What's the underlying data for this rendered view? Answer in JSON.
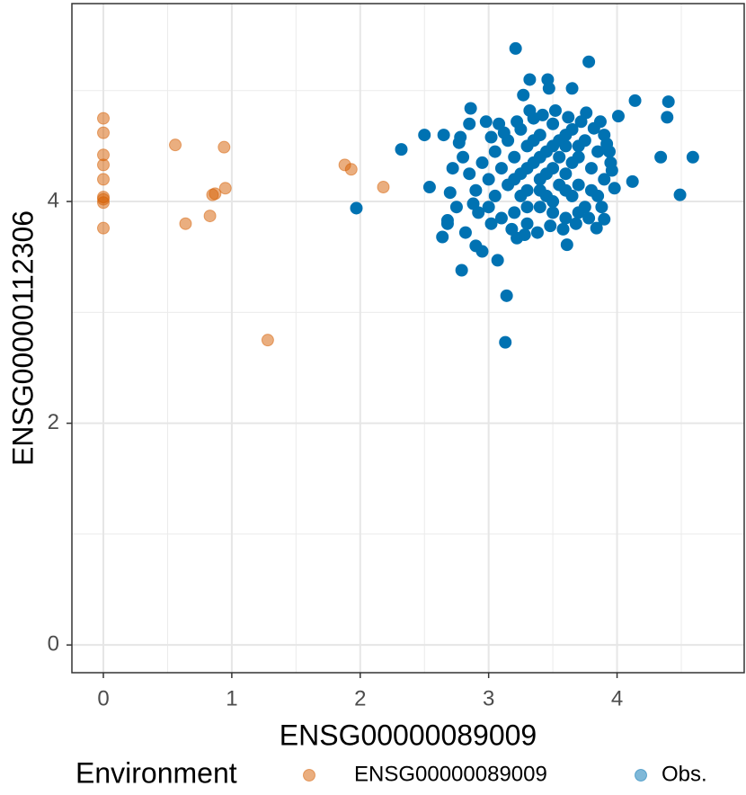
{
  "chart_data": {
    "type": "scatter",
    "x_label": "ENSG00000089009",
    "y_label": "ENSG00000112306",
    "legend_title": "Environment",
    "legend_position": "bottom",
    "grid": true,
    "xlim": [
      -0.245,
      4.99
    ],
    "ylim": [
      -0.25,
      5.785
    ],
    "xticks": [
      0,
      1,
      2,
      3,
      4
    ],
    "yticks": [
      0,
      2,
      4
    ],
    "x_minor_grid": [
      0.5,
      1.5,
      2.5,
      3.5,
      4.5
    ],
    "y_minor_grid": [
      1,
      3,
      5
    ],
    "series": [
      {
        "name": "ENSG00000089009",
        "color": "#D55E00",
        "x": [
          0,
          0,
          0,
          0,
          0,
          0,
          0,
          0,
          0,
          0.56,
          0.94,
          0.95,
          0.87,
          0.85,
          0.64,
          0.83,
          1.28,
          1.88,
          1.93,
          2.18
        ],
        "y": [
          4.75,
          4.62,
          4.42,
          4.33,
          4.2,
          4.04,
          4.02,
          3.99,
          3.76,
          4.51,
          4.49,
          4.12,
          4.07,
          4.06,
          3.8,
          3.87,
          2.75,
          4.33,
          4.29,
          4.13
        ]
      },
      {
        "name": "Obs.",
        "color": "#0072B2",
        "x": [
          3.21,
          3.78,
          3.13,
          3.14,
          1.97,
          2.79,
          3.07,
          2.32,
          2.5,
          4.49,
          4.59,
          4.34,
          4.4,
          4.39,
          4.14,
          4.12,
          4.01,
          2.64,
          3.32,
          3.46,
          3.47,
          3.27,
          3.65,
          3.61,
          3.22,
          3.84,
          3.9,
          2.86,
          2.77,
          2.65,
          2.54,
          2.68,
          3.0,
          3.1,
          3.2,
          3.3,
          3.4,
          3.5,
          3.6,
          3.7,
          3.8,
          3.9,
          3.05,
          3.15,
          3.25,
          3.35,
          3.45,
          3.55,
          3.65,
          3.75,
          3.85,
          3.95,
          2.95,
          3.05,
          3.15,
          3.25,
          3.35,
          3.45,
          3.55,
          3.65,
          3.75,
          3.85,
          3.0,
          3.1,
          3.2,
          3.3,
          3.4,
          3.5,
          3.6,
          3.7,
          3.8,
          3.9,
          3.12,
          3.22,
          3.32,
          3.42,
          3.52,
          3.62,
          3.72,
          3.82,
          3.92,
          3.02,
          2.9,
          2.85,
          2.8,
          2.88,
          2.92,
          2.98,
          3.08,
          3.18,
          3.28,
          3.38,
          3.48,
          3.58,
          3.68,
          3.78,
          3.88,
          3.98,
          3.96,
          3.94,
          3.87,
          3.76,
          3.3,
          3.4,
          3.5,
          3.6,
          3.7,
          3.45,
          3.55,
          3.35,
          3.25,
          3.65,
          3.2,
          3.3,
          3.4,
          3.5,
          3.6,
          3.7,
          3.5,
          3.4,
          3.6,
          3.3,
          2.72,
          2.7,
          2.75,
          2.68,
          2.82,
          2.9,
          2.95,
          3.02,
          2.78,
          2.85
        ],
        "y": [
          5.38,
          5.26,
          2.73,
          3.15,
          3.94,
          3.38,
          3.47,
          4.47,
          4.6,
          4.06,
          4.4,
          4.4,
          4.9,
          4.76,
          4.91,
          4.18,
          4.77,
          3.68,
          5.1,
          5.1,
          5.02,
          4.96,
          5.02,
          3.61,
          3.67,
          3.76,
          3.84,
          4.84,
          4.53,
          4.6,
          4.13,
          3.83,
          4.2,
          4.3,
          4.4,
          4.5,
          4.6,
          4.7,
          4.5,
          4.4,
          4.3,
          4.2,
          4.05,
          4.15,
          4.25,
          4.35,
          4.45,
          4.55,
          4.65,
          4.55,
          4.45,
          4.35,
          4.35,
          4.45,
          4.55,
          4.65,
          4.75,
          4.25,
          4.15,
          4.05,
          3.95,
          4.05,
          3.95,
          3.85,
          3.9,
          3.8,
          3.95,
          3.9,
          3.85,
          3.9,
          4.1,
          4.6,
          4.62,
          4.72,
          4.82,
          4.78,
          4.82,
          4.76,
          4.72,
          4.66,
          4.52,
          4.58,
          4.1,
          4.25,
          4.4,
          3.98,
          3.9,
          4.72,
          4.7,
          3.75,
          3.7,
          3.72,
          3.78,
          3.75,
          3.8,
          3.85,
          3.95,
          4.12,
          4.28,
          4.45,
          4.72,
          4.8,
          4.1,
          4.2,
          4.3,
          4.25,
          4.15,
          4.05,
          4.4,
          4.55,
          4.05,
          4.35,
          4.2,
          4.3,
          4.4,
          4.5,
          4.6,
          4.5,
          4.0,
          4.1,
          4.1,
          3.95,
          4.3,
          4.08,
          3.95,
          3.8,
          3.72,
          3.6,
          3.55,
          3.8,
          4.58,
          4.7
        ]
      }
    ]
  }
}
